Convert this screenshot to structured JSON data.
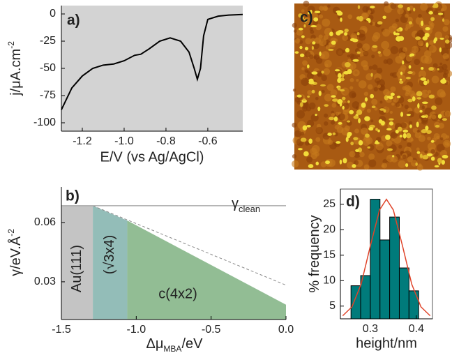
{
  "chart_data": [
    {
      "type": "line",
      "label": "a)",
      "x_label": "E/V (vs Ag/AgCl)",
      "y_label": "j/μA.cm",
      "y_label_sup": "-2",
      "xlim": [
        -1.3,
        -0.433
      ],
      "ylim": [
        -107.7,
        7.7
      ],
      "xticks": [
        -1.2,
        {
          "value": -1.0,
          "label": "-1.0"
        },
        -0.8,
        -0.6
      ],
      "yticks": [
        0,
        -25,
        -50,
        -75,
        -100
      ],
      "background": "#d3d3d3",
      "color": "#000000",
      "x": [
        -1.3,
        -1.25,
        -1.2,
        -1.15,
        -1.1,
        -1.05,
        -1.0,
        -0.95,
        -0.92,
        -0.88,
        -0.83,
        -0.78,
        -0.73,
        -0.69,
        -0.665,
        -0.65,
        -0.635,
        -0.62,
        -0.6,
        -0.55,
        -0.5,
        -0.433
      ],
      "values": [
        -88,
        -68,
        -57,
        -50,
        -47,
        -46,
        -43,
        -38,
        -37,
        -32,
        -25,
        -22,
        -25,
        -35,
        -50,
        -60,
        -50,
        -20,
        -5,
        -2,
        -1,
        -0.5
      ]
    },
    {
      "type": "image",
      "label": "c)"
    },
    {
      "type": "area",
      "label": "b)",
      "x_label": "Δμ",
      "x_label_sub": "MBA",
      "x_label_end": "/eV",
      "y_label": "γ/eV.Å",
      "y_label_sup": "-2",
      "xlim": [
        -1.5,
        0.0
      ],
      "ylim": [
        0.0109,
        0.078
      ],
      "xticks": [
        -1.5,
        {
          "value": -1.0,
          "label": "-1.0"
        },
        -0.5,
        {
          "value": 0.0,
          "label": "0.0"
        }
      ],
      "yticks": [
        0.03,
        0.06
      ],
      "regions": [
        {
          "name": "Au(111)",
          "color": "#c4c4c4",
          "x": [
            -1.5,
            -1.29
          ],
          "values": [
            0.0685,
            0.0685
          ]
        },
        {
          "name": "(√3x4)",
          "color": "#93bdb8",
          "x": [
            -1.29,
            -1.06
          ],
          "values": [
            0.0685,
            0.061
          ]
        },
        {
          "name": "c(4x2)",
          "color": "#92bd94",
          "x": [
            -1.06,
            0.0
          ],
          "values": [
            0.061,
            0.0184
          ]
        }
      ],
      "extrapolation": {
        "x": [
          -1.29,
          0.0
        ],
        "values": [
          0.0685,
          0.0283
        ]
      },
      "reference": {
        "name": "γ",
        "sub": "clean",
        "value": 0.0685
      }
    },
    {
      "type": "histogram",
      "label": "d)",
      "x_label": "height/nm",
      "y_label": "% frequency",
      "xlim": [
        0.235,
        0.435
      ],
      "ylim": [
        2.5,
        28
      ],
      "xticks": [
        0.3,
        0.4
      ],
      "yticks": [
        5,
        10,
        15,
        20,
        25
      ],
      "color": "#007b7b",
      "bins": [
        0.258,
        0.279,
        0.3,
        0.321,
        0.342,
        0.363,
        0.384,
        0.405
      ],
      "values": [
        9,
        11,
        26,
        18,
        22.5,
        12.5,
        8
      ],
      "fit": {
        "color": "#e0442a",
        "x": [
          0.24,
          0.26,
          0.28,
          0.3,
          0.32,
          0.335,
          0.35,
          0.37,
          0.39,
          0.41,
          0.43
        ],
        "values": [
          3.1,
          4.85,
          9.3,
          16.8,
          23.9,
          26,
          23.9,
          16.8,
          9.3,
          4.85,
          3.1
        ]
      }
    }
  ]
}
